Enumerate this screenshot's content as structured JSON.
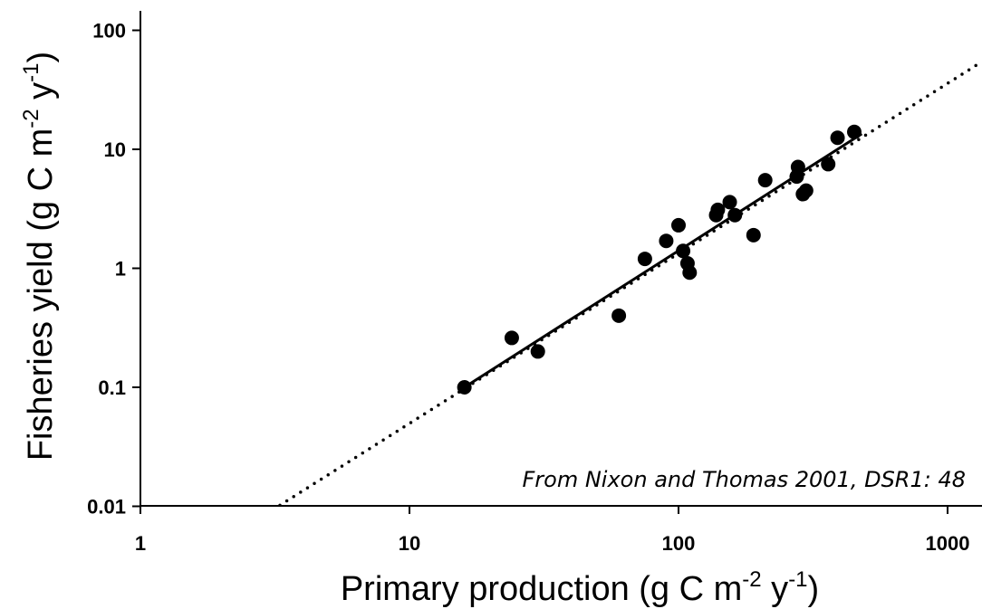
{
  "chart_data": {
    "type": "scatter",
    "xscale": "log",
    "yscale": "log",
    "xlim": [
      1,
      1350
    ],
    "ylim": [
      0.01,
      120
    ],
    "x_ticks": [
      1,
      10,
      100,
      1000
    ],
    "x_tick_labels": [
      "1",
      "10",
      "100",
      "1000"
    ],
    "y_ticks": [
      0.01,
      0.1,
      1,
      10,
      100
    ],
    "y_tick_labels": [
      "0.01",
      "0.1",
      "1",
      "10",
      "100"
    ],
    "xlabel": {
      "base": "Primary production (g C m",
      "exp1": "-2",
      "mid": " y",
      "exp2": "-1",
      "end": ")"
    },
    "ylabel": {
      "base": "Fisheries yield (g C m",
      "exp1": "-2",
      "mid": " y",
      "exp2": "-1",
      "end": ")"
    },
    "annotation": "From Nixon and Thomas 2001, DSR1: 48",
    "grid": false,
    "points": [
      {
        "x": 16,
        "y": 0.1
      },
      {
        "x": 24,
        "y": 0.26
      },
      {
        "x": 30,
        "y": 0.2
      },
      {
        "x": 60,
        "y": 0.4
      },
      {
        "x": 75,
        "y": 1.2
      },
      {
        "x": 90,
        "y": 1.7
      },
      {
        "x": 100,
        "y": 2.3
      },
      {
        "x": 104,
        "y": 1.4
      },
      {
        "x": 108,
        "y": 1.1
      },
      {
        "x": 110,
        "y": 0.92
      },
      {
        "x": 138,
        "y": 2.8
      },
      {
        "x": 140,
        "y": 3.1
      },
      {
        "x": 155,
        "y": 3.6
      },
      {
        "x": 162,
        "y": 2.8
      },
      {
        "x": 190,
        "y": 1.9
      },
      {
        "x": 210,
        "y": 5.5
      },
      {
        "x": 275,
        "y": 5.9
      },
      {
        "x": 278,
        "y": 7.1
      },
      {
        "x": 290,
        "y": 4.2
      },
      {
        "x": 298,
        "y": 4.5
      },
      {
        "x": 360,
        "y": 7.5
      },
      {
        "x": 390,
        "y": 12.5
      },
      {
        "x": 450,
        "y": 14
      }
    ],
    "fit_line": {
      "x": [
        16,
        480
      ],
      "y": [
        0.1,
        13.5
      ]
    },
    "fit_extension": {
      "x": [
        3.3,
        1350
      ],
      "y": [
        0.0102,
        55
      ]
    }
  }
}
